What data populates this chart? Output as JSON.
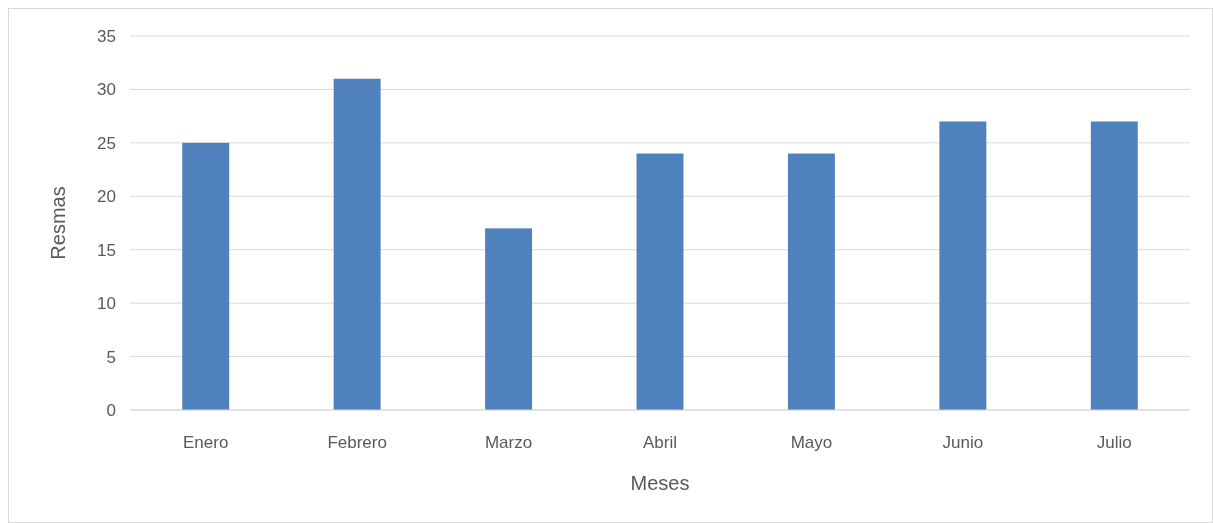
{
  "chart_data": {
    "type": "bar",
    "xlabel": "Meses",
    "ylabel": "Resmas",
    "categories": [
      "Enero",
      "Febrero",
      "Marzo",
      "Abril",
      "Mayo",
      "Junio",
      "Julio"
    ],
    "values": [
      25,
      31,
      17,
      24,
      24,
      27,
      27
    ],
    "color": "#4f81bd",
    "ylim": [
      0,
      35
    ],
    "yticks": [
      0,
      5,
      10,
      15,
      20,
      25,
      30,
      35
    ],
    "grid": "y"
  }
}
